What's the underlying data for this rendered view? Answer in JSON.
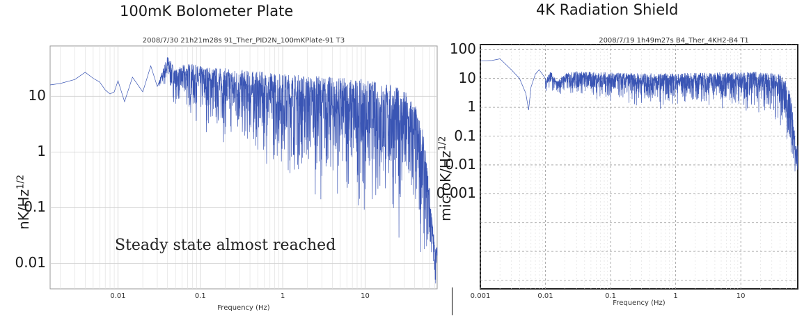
{
  "chart_data": [
    {
      "type": "line",
      "title": "100mK Bolometer Plate",
      "subtitle": "2008/7/30 21h21m28s 91_Ther_PID2N_100mKPlate-91 T3",
      "xlabel": "Frequency (Hz)",
      "ylabel": "nK/Hz",
      "ylabel_sup": "1/2",
      "x_scale": "log",
      "y_scale": "log",
      "xlim": [
        0.0015,
        75
      ],
      "ylim": [
        0.0035,
        80
      ],
      "x_ticks": [
        0.01,
        0.1,
        1,
        10
      ],
      "x_tick_labels": [
        "0.01",
        "0.1",
        "1",
        "10"
      ],
      "y_ticks": [
        10,
        1,
        0.1,
        0.01
      ],
      "y_tick_labels": [
        "10",
        "1",
        "0.1",
        "0.01"
      ],
      "grid": true,
      "annotation": "Steady state almost reached",
      "series": [
        {
          "color": "#3a55b4",
          "points": [
            [
              0.0015,
              16
            ],
            [
              0.002,
              17
            ],
            [
              0.003,
              20
            ],
            [
              0.004,
              27
            ],
            [
              0.005,
              21
            ],
            [
              0.006,
              18
            ],
            [
              0.007,
              13
            ],
            [
              0.008,
              11
            ],
            [
              0.009,
              12
            ],
            [
              0.01,
              19
            ],
            [
              0.012,
              8
            ],
            [
              0.015,
              22
            ],
            [
              0.02,
              12
            ],
            [
              0.025,
              35
            ],
            [
              0.03,
              15
            ],
            [
              0.04,
              55
            ],
            [
              0.05,
              30
            ],
            [
              0.07,
              40
            ],
            [
              0.1,
              35
            ],
            [
              0.2,
              32
            ],
            [
              0.5,
              28
            ],
            [
              1,
              26
            ],
            [
              2,
              24
            ],
            [
              5,
              22
            ],
            [
              10,
              20
            ],
            [
              20,
              17
            ],
            [
              30,
              13
            ],
            [
              40,
              8
            ],
            [
              50,
              2.5
            ],
            [
              60,
              0.3
            ],
            [
              70,
              0.02
            ]
          ],
          "lower_envelope": [
            [
              0.03,
              15
            ],
            [
              0.05,
              6
            ],
            [
              0.1,
              2
            ],
            [
              0.2,
              1
            ],
            [
              0.5,
              0.5
            ],
            [
              1,
              0.3
            ],
            [
              2,
              0.15
            ],
            [
              5,
              0.08
            ],
            [
              10,
              0.05
            ],
            [
              20,
              0.03
            ],
            [
              40,
              0.01
            ],
            [
              60,
              0.005
            ],
            [
              70,
              0.004
            ]
          ]
        }
      ]
    },
    {
      "type": "line",
      "title": "4K Radiation Shield",
      "subtitle": "2008/7/19 1h49m27s B4_Ther_4KH2-B4 T1",
      "xlabel": "Frequency (Hz)",
      "ylabel": "microK/Hz",
      "ylabel_sup": "1/2",
      "x_scale": "log",
      "y_scale": "log",
      "xlim": [
        0.001,
        75
      ],
      "ylim": [
        5e-07,
        150
      ],
      "x_ticks": [
        0.001,
        0.01,
        0.1,
        1,
        10
      ],
      "x_tick_labels": [
        "0.001",
        "0.01",
        "0.1",
        "1",
        "10"
      ],
      "y_ticks": [
        100,
        10,
        1,
        0.1,
        0.01,
        0.001
      ],
      "y_tick_labels": [
        "100",
        "10",
        "1",
        "0.1",
        "0.01",
        "0.001"
      ],
      "grid": true,
      "series": [
        {
          "color": "#3a55b4",
          "points": [
            [
              0.001,
              40
            ],
            [
              0.0015,
              42
            ],
            [
              0.002,
              48
            ],
            [
              0.003,
              20
            ],
            [
              0.004,
              10
            ],
            [
              0.005,
              3
            ],
            [
              0.0055,
              0.8
            ],
            [
              0.006,
              5
            ],
            [
              0.007,
              14
            ],
            [
              0.008,
              20
            ],
            [
              0.01,
              10
            ],
            [
              0.012,
              18
            ],
            [
              0.015,
              8
            ],
            [
              0.02,
              15
            ],
            [
              0.03,
              18
            ],
            [
              0.05,
              17
            ],
            [
              0.1,
              16
            ],
            [
              0.3,
              15
            ],
            [
              1,
              15
            ],
            [
              3,
              16
            ],
            [
              10,
              17
            ],
            [
              20,
              17
            ],
            [
              40,
              14
            ],
            [
              50,
              8
            ],
            [
              60,
              2
            ],
            [
              70,
              0.05
            ]
          ],
          "lower_envelope": [
            [
              0.01,
              3
            ],
            [
              0.02,
              2
            ],
            [
              0.05,
              1.5
            ],
            [
              0.1,
              1
            ],
            [
              0.3,
              0.8
            ],
            [
              1,
              0.8
            ],
            [
              3,
              0.8
            ],
            [
              10,
              0.7
            ],
            [
              20,
              0.5
            ],
            [
              40,
              0.1
            ],
            [
              60,
              0.005
            ],
            [
              70,
              0.001
            ]
          ]
        }
      ]
    }
  ]
}
